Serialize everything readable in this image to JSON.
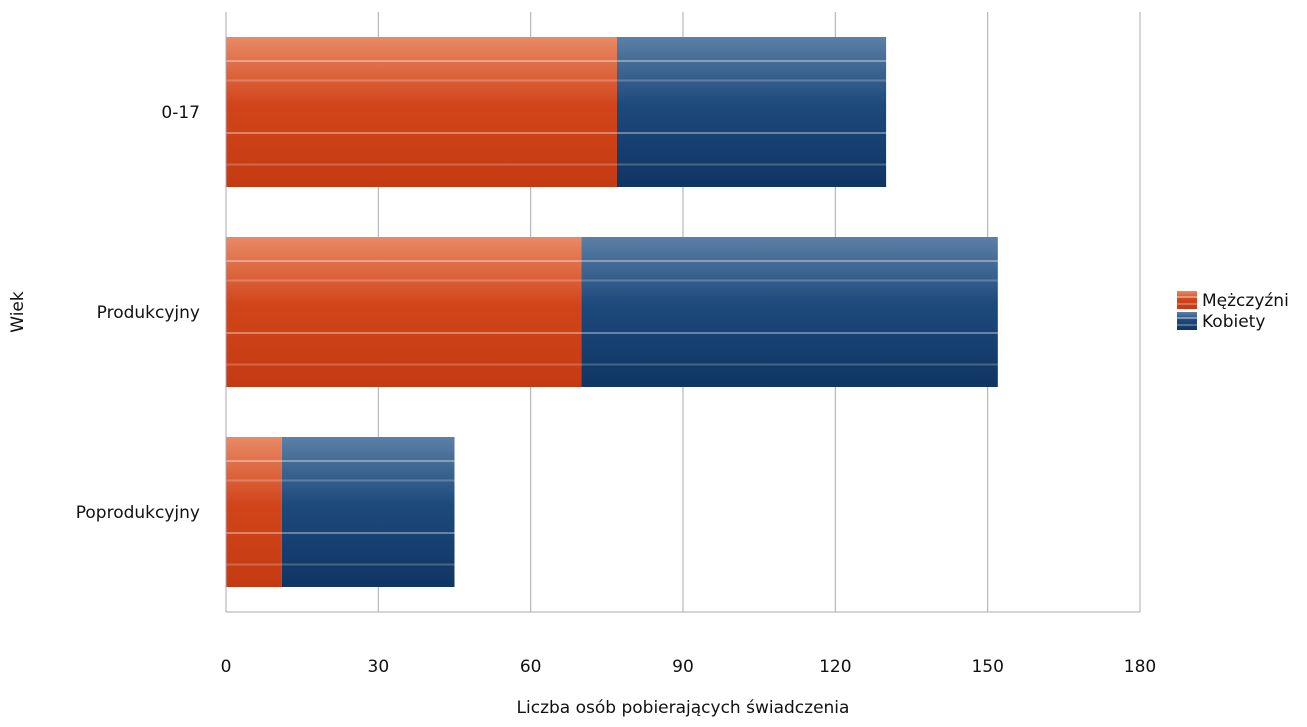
{
  "chart_data": {
    "type": "bar",
    "orientation": "horizontal",
    "stacked": true,
    "categories": [
      "0-17",
      "Produkcyjny",
      "Poprodukcyjny"
    ],
    "series": [
      {
        "name": "Mężczyźni",
        "values": [
          77,
          70,
          11
        ],
        "color": "#d2451b"
      },
      {
        "name": "Kobiety",
        "values": [
          53,
          82,
          34
        ],
        "color": "#1d4a7c"
      }
    ],
    "xlabel": "Liczba osób pobierających świadczenia",
    "ylabel": "Wiek",
    "xlim": [
      0,
      180
    ],
    "xticks": [
      "0",
      "30",
      "60",
      "90",
      "120",
      "150",
      "180"
    ],
    "grid": true,
    "legend_position": "right"
  }
}
